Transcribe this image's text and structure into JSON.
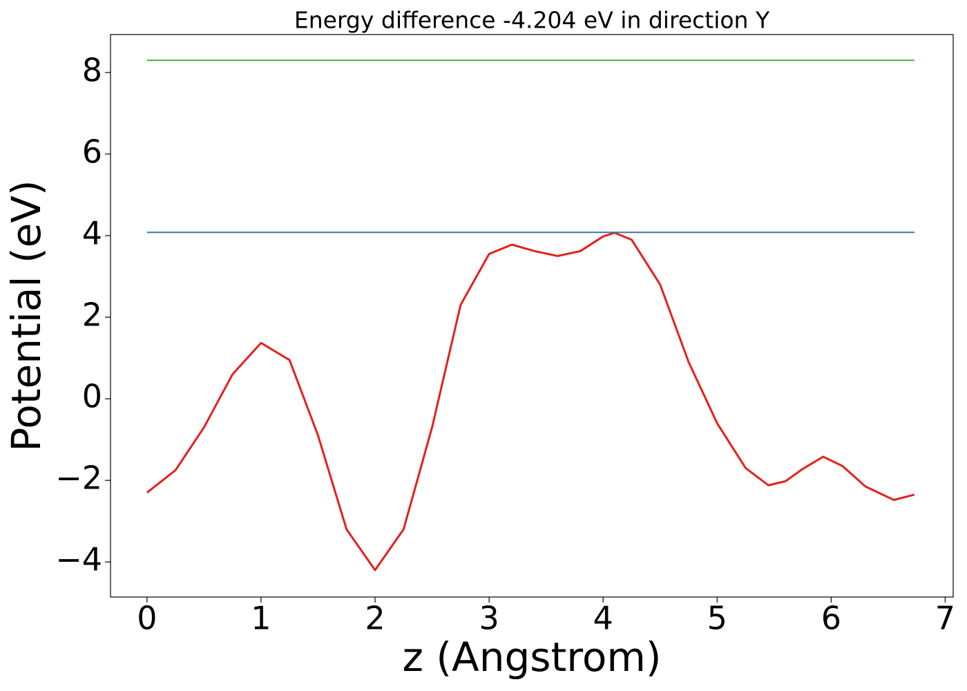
{
  "chart_data": {
    "type": "line",
    "title": "Energy difference -4.204 eV in direction Y",
    "x_label": "z (Angstrom)",
    "y_label": "Potential (eV)",
    "xlim": [
      -0.32,
      7.07
    ],
    "ylim": [
      -4.86,
      8.93
    ],
    "xticks": [
      0,
      1,
      2,
      3,
      4,
      5,
      6,
      7
    ],
    "yticks": [
      {
        "value": -4,
        "label": "−4"
      },
      {
        "value": -2,
        "label": "−2"
      },
      0,
      2,
      4,
      6,
      8
    ],
    "series": [
      {
        "color": "#e4201d",
        "x": [
          0,
          0.25,
          0.5,
          0.75,
          1.0,
          1.25,
          1.5,
          1.75,
          2.0,
          2.25,
          2.5,
          2.75,
          3.0,
          3.2,
          3.4,
          3.6,
          3.8,
          4.0,
          4.1,
          4.25,
          4.5,
          4.75,
          5.0,
          5.25,
          5.45,
          5.6,
          5.75,
          5.93,
          6.1,
          6.3,
          6.55,
          6.73
        ],
        "values": [
          -2.3,
          -1.75,
          -0.7,
          0.6,
          1.37,
          0.95,
          -0.9,
          -3.2,
          -4.2,
          -3.2,
          -0.7,
          2.3,
          3.55,
          3.78,
          3.62,
          3.5,
          3.62,
          3.98,
          4.07,
          3.9,
          2.8,
          0.9,
          -0.6,
          -1.7,
          -2.12,
          -2.02,
          -1.72,
          -1.42,
          -1.65,
          -2.15,
          -2.48,
          -2.35
        ]
      },
      {
        "color": "#3a75a8",
        "x": [
          0,
          6.73
        ],
        "values": [
          4.08,
          4.08
        ]
      },
      {
        "color": "#3cb43c",
        "x": [
          0,
          6.73
        ],
        "values": [
          8.3,
          8.3
        ]
      }
    ]
  }
}
